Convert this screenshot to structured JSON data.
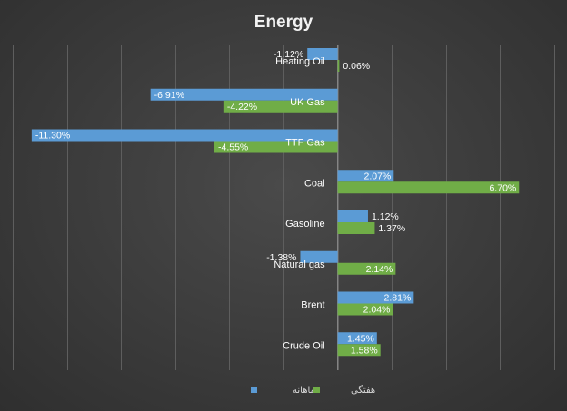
{
  "chart_data": {
    "type": "bar",
    "orientation": "horizontal",
    "title": "Energy",
    "categories": [
      "Heating Oil",
      "UK Gas",
      "TTF Gas",
      "Coal",
      "Gasoline",
      "Natural gas",
      "Brent",
      "Crude Oil"
    ],
    "series": [
      {
        "name": "ماهانه",
        "color": "#5b9bd5",
        "values": [
          -1.12,
          -6.91,
          -11.3,
          2.07,
          1.12,
          -1.38,
          2.81,
          1.45
        ],
        "labels": [
          "-1.12%",
          "-6.91%",
          "-11.30%",
          "2.07%",
          "1.12%",
          "-1.38%",
          "2.81%",
          "1.45%"
        ]
      },
      {
        "name": "هفتگی",
        "color": "#70ad47",
        "values": [
          0.06,
          -4.22,
          -4.55,
          6.7,
          1.37,
          2.14,
          2.04,
          1.58
        ],
        "labels": [
          "0.06%",
          "-4.22%",
          "-4.55%",
          "6.70%",
          "1.37%",
          "2.14%",
          "2.04%",
          "1.58%"
        ]
      }
    ],
    "xlim": [
      -12,
      8
    ],
    "grid": true,
    "legend": "bottom"
  }
}
